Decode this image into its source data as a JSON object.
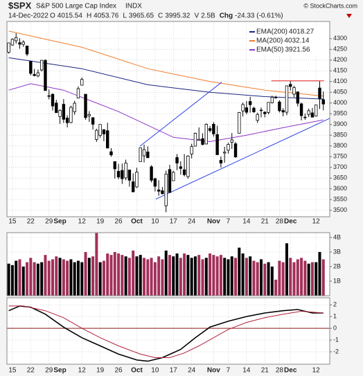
{
  "header": {
    "symbol": "$SPX",
    "name": "S&P 500 Large Cap Index",
    "exchange": "INDX",
    "credit": "© StockCharts.com",
    "date": "14-Dec-2022",
    "quote": [
      {
        "label": "O",
        "value": "4015.54"
      },
      {
        "label": "H",
        "value": "4053.76"
      },
      {
        "label": "L",
        "value": "3965.65"
      },
      {
        "label": "C",
        "value": "3995.32"
      },
      {
        "label": "V",
        "value": "2.5B"
      },
      {
        "label": "Chg",
        "value": "-24.33 (-0.61%)"
      }
    ]
  },
  "chart_data": [
    {
      "type": "candlestick",
      "xlim": [
        -0.5,
        87.75
      ],
      "ylim": [
        3470,
        4380
      ],
      "yticks": [
        3500,
        3550,
        3600,
        3650,
        3700,
        3750,
        3800,
        3850,
        3900,
        3950,
        4000,
        4050,
        4100,
        4150,
        4200,
        4250,
        4300
      ],
      "xticks": [
        {
          "value": 1,
          "label": "15"
        },
        {
          "value": 6,
          "label": "22"
        },
        {
          "value": 11,
          "label": "29"
        },
        {
          "value": 14,
          "label": "Sep"
        },
        {
          "value": 20,
          "label": "12"
        },
        {
          "value": 25,
          "label": "19"
        },
        {
          "value": 30,
          "label": "26"
        },
        {
          "value": 35,
          "label": "Oct"
        },
        {
          "value": 40,
          "label": "10"
        },
        {
          "value": 45,
          "label": "17"
        },
        {
          "value": 50,
          "label": "24"
        },
        {
          "value": 56,
          "label": "Nov"
        },
        {
          "value": 60,
          "label": "7"
        },
        {
          "value": 65,
          "label": "14"
        },
        {
          "value": 70,
          "label": "21"
        },
        {
          "value": 74,
          "label": "28"
        },
        {
          "value": 77,
          "label": "Dec"
        },
        {
          "value": 84,
          "label": "12"
        }
      ],
      "up_color": "#ffffff",
      "down_color": "#000000",
      "grid": true,
      "legend": "top-right",
      "ohlc": [
        [
          4236,
          4280,
          4230,
          4280
        ],
        [
          4270,
          4301,
          4267,
          4297
        ],
        [
          4290,
          4325,
          4277,
          4305
        ],
        [
          4281,
          4302,
          4253,
          4274
        ],
        [
          4273,
          4292,
          4262,
          4284
        ],
        [
          4266,
          4266,
          4218,
          4228
        ],
        [
          4195,
          4196,
          4129,
          4138
        ],
        [
          4133,
          4159,
          4124,
          4128
        ],
        [
          4126,
          4156,
          4120,
          4141
        ],
        [
          4154,
          4200,
          4147,
          4199
        ],
        [
          4199,
          4203,
          4057,
          4058
        ],
        [
          4034,
          4063,
          4017,
          4031
        ],
        [
          4041,
          4044,
          3965,
          3986
        ],
        [
          4000,
          4015,
          3954,
          3955
        ],
        [
          3937,
          3970,
          3903,
          3966
        ],
        [
          3994,
          4018,
          3907,
          3924
        ],
        [
          3930,
          3943,
          3886,
          3908
        ],
        [
          3909,
          3987,
          3906,
          3980
        ],
        [
          3959,
          4010,
          3945,
          3999
        ],
        [
          4023,
          4077,
          4023,
          4067
        ],
        [
          4083,
          4119,
          4083,
          4110
        ],
        [
          4041,
          4041,
          3922,
          3932
        ],
        [
          3940,
          3962,
          3912,
          3946
        ],
        [
          3932,
          3932,
          3876,
          3901
        ],
        [
          3830,
          3880,
          3819,
          3873
        ],
        [
          3849,
          3900,
          3838,
          3900
        ],
        [
          3876,
          3876,
          3822,
          3856
        ],
        [
          3871,
          3908,
          3789,
          3790
        ],
        [
          3773,
          3790,
          3750,
          3758
        ],
        [
          3727,
          3727,
          3648,
          3693
        ],
        [
          3682,
          3716,
          3645,
          3655
        ],
        [
          3686,
          3718,
          3623,
          3647
        ],
        [
          3651,
          3736,
          3640,
          3720
        ],
        [
          3688,
          3688,
          3610,
          3640
        ],
        [
          3633,
          3672,
          3584,
          3586
        ],
        [
          3609,
          3698,
          3604,
          3678
        ],
        [
          3727,
          3792,
          3727,
          3791
        ],
        [
          3754,
          3806,
          3723,
          3783
        ],
        [
          3772,
          3798,
          3744,
          3745
        ],
        [
          3703,
          3710,
          3630,
          3640
        ],
        [
          3647,
          3652,
          3588,
          3612
        ],
        [
          3595,
          3640,
          3568,
          3589
        ],
        [
          3591,
          3608,
          3574,
          3577
        ],
        [
          3521,
          3685,
          3491,
          3669
        ],
        [
          3690,
          3712,
          3582,
          3583
        ],
        [
          3638,
          3684,
          3638,
          3677
        ],
        [
          3746,
          3762,
          3687,
          3720
        ],
        [
          3703,
          3728,
          3666,
          3695
        ],
        [
          3689,
          3762,
          3658,
          3666
        ],
        [
          3657,
          3757,
          3647,
          3753
        ],
        [
          3762,
          3810,
          3742,
          3797
        ],
        [
          3799,
          3862,
          3799,
          3859
        ],
        [
          3826,
          3886,
          3825,
          3831
        ],
        [
          3834,
          3859,
          3803,
          3807
        ],
        [
          3809,
          3905,
          3808,
          3901
        ],
        [
          3881,
          3893,
          3863,
          3872
        ],
        [
          3901,
          3911,
          3843,
          3856
        ],
        [
          3853,
          3894,
          3758,
          3759
        ],
        [
          3733,
          3751,
          3699,
          3720
        ],
        [
          3767,
          3796,
          3722,
          3771
        ],
        [
          3780,
          3814,
          3764,
          3807
        ],
        [
          3817,
          3860,
          3786,
          3828
        ],
        [
          3810,
          3818,
          3744,
          3749
        ],
        [
          3859,
          3958,
          3859,
          3956
        ],
        [
          3963,
          4002,
          3937,
          3993
        ],
        [
          3978,
          4009,
          3947,
          3957
        ],
        [
          4007,
          4029,
          3955,
          3992
        ],
        [
          3976,
          3983,
          3954,
          3959
        ],
        [
          3919,
          3955,
          3907,
          3947
        ],
        [
          3967,
          3979,
          3933,
          3965
        ],
        [
          3957,
          3962,
          3933,
          3950
        ],
        [
          3956,
          4003,
          3947,
          4003
        ],
        [
          4001,
          4034,
          3998,
          4027
        ],
        [
          4024,
          4034,
          4021,
          4026
        ],
        [
          4005,
          4013,
          3956,
          3964
        ],
        [
          3965,
          3976,
          3938,
          3958
        ],
        [
          3957,
          4080,
          3943,
          4080
        ],
        [
          4087,
          4101,
          4058,
          4077
        ],
        [
          4041,
          4080,
          4027,
          4072
        ],
        [
          4052,
          4053,
          3984,
          3999
        ],
        [
          3996,
          4002,
          3919,
          3941
        ],
        [
          3934,
          3951,
          3922,
          3933
        ],
        [
          3947,
          3974,
          3935,
          3964
        ],
        [
          3954,
          3977,
          3934,
          3934
        ],
        [
          3939,
          3991,
          3937,
          3991
        ],
        [
          4070,
          4101,
          3972,
          4020
        ],
        [
          4015.54,
          4053.76,
          3965.65,
          3995.32
        ]
      ],
      "series": [
        {
          "name": "EMA(200)",
          "legend_value": "4018.27",
          "color": "#1a237e",
          "x": [
            0,
            20,
            38,
            55,
            70,
            86
          ],
          "values": [
            4211,
            4160,
            4085,
            4050,
            4030,
            4018.27
          ]
        },
        {
          "name": "MA(200)",
          "legend_value": "4032.14",
          "color": "#f07c2a",
          "x": [
            0,
            20,
            38,
            55,
            70,
            86
          ],
          "values": [
            4335,
            4260,
            4160,
            4100,
            4060,
            4032.14
          ]
        },
        {
          "name": "EMA(50)",
          "legend_value": "3921.56",
          "color": "#8e35c9",
          "x": [
            0,
            6,
            15,
            30,
            45,
            55,
            65,
            75,
            86
          ],
          "values": [
            4060,
            4090,
            4060,
            3960,
            3840,
            3820,
            3850,
            3885,
            3921.56
          ]
        }
      ],
      "trendlines": [
        {
          "color": "#2a3fe0",
          "x": [
            35.8,
            58.2
          ],
          "values": [
            3798,
            4097
          ]
        },
        {
          "color": "#2a3fe0",
          "x": [
            40.2,
            87.7
          ],
          "values": [
            3552,
            3928
          ]
        },
        {
          "color": "#e02020",
          "x": [
            71.8,
            86.2
          ],
          "values": [
            4103,
            4103
          ]
        }
      ]
    },
    {
      "type": "bar",
      "xlim": [
        -0.5,
        87.75
      ],
      "ylim": [
        0,
        4.33
      ],
      "yticks": [
        {
          "value": 1,
          "label": "1B"
        },
        {
          "value": 2,
          "label": "2B"
        },
        {
          "value": 3,
          "label": "3B"
        },
        {
          "value": 4,
          "label": "4B"
        }
      ],
      "up_color": "#000000",
      "down_color": "#a3305a",
      "grid": true,
      "values": [
        2.2,
        2.1,
        2.4,
        2.5,
        2.0,
        2.3,
        2.6,
        2.3,
        2.2,
        2.3,
        2.8,
        2.4,
        2.5,
        2.7,
        2.6,
        2.5,
        2.4,
        2.5,
        2.3,
        2.4,
        2.3,
        3.0,
        2.6,
        2.7,
        4.3,
        2.3,
        2.4,
        2.9,
        2.8,
        3.0,
        2.9,
        2.8,
        2.7,
        2.6,
        3.1,
        2.7,
        2.8,
        2.6,
        2.5,
        2.6,
        2.3,
        2.7,
        2.5,
        3.1,
        2.8,
        2.7,
        2.9,
        2.6,
        2.9,
        2.8,
        2.6,
        2.7,
        2.8,
        2.5,
        2.6,
        2.9,
        2.8,
        2.7,
        2.8,
        2.6,
        2.5,
        2.7,
        2.6,
        3.3,
        2.9,
        2.6,
        2.7,
        2.4,
        2.3,
        2.5,
        2.2,
        2.3,
        2.0,
        1.1,
        2.4,
        2.3,
        3.6,
        2.6,
        2.3,
        2.5,
        2.6,
        2.4,
        2.2,
        2.3,
        2.3,
        3.0,
        2.5
      ]
    },
    {
      "type": "line",
      "xlim": [
        -0.5,
        87.75
      ],
      "ylim": [
        -3.06,
        2.6
      ],
      "yticks": [
        -2,
        -1,
        0,
        1,
        2
      ],
      "grid": true,
      "xticks": [
        {
          "value": 1,
          "label": "15"
        },
        {
          "value": 6,
          "label": "22"
        },
        {
          "value": 11,
          "label": "29"
        },
        {
          "value": 14,
          "label": "Sep"
        },
        {
          "value": 20,
          "label": "12"
        },
        {
          "value": 25,
          "label": "19"
        },
        {
          "value": 30,
          "label": "26"
        },
        {
          "value": 35,
          "label": "Oct"
        },
        {
          "value": 40,
          "label": "10"
        },
        {
          "value": 45,
          "label": "17"
        },
        {
          "value": 50,
          "label": "24"
        },
        {
          "value": 56,
          "label": "Nov"
        },
        {
          "value": 60,
          "label": "7"
        },
        {
          "value": 65,
          "label": "14"
        },
        {
          "value": 70,
          "label": "21"
        },
        {
          "value": 74,
          "label": "28"
        },
        {
          "value": 77,
          "label": "Dec"
        },
        {
          "value": 84,
          "label": "12"
        }
      ],
      "series": [
        {
          "color": "#000000",
          "x": [
            0,
            3,
            6,
            10,
            15,
            20,
            25,
            30,
            35,
            38,
            42,
            47,
            51,
            55,
            60,
            65,
            70,
            75,
            79,
            83,
            86
          ],
          "values": [
            1.5,
            1.9,
            1.8,
            1.2,
            0.1,
            -0.8,
            -1.5,
            -2.2,
            -2.7,
            -2.8,
            -2.5,
            -1.8,
            -0.8,
            0.1,
            0.6,
            1.0,
            1.3,
            1.5,
            1.6,
            1.3,
            1.3
          ]
        },
        {
          "color": "#b0203a",
          "x": [
            0,
            4,
            10,
            15,
            20,
            25,
            30,
            36,
            40,
            44,
            48,
            52,
            56,
            60,
            65,
            70,
            75,
            80,
            86
          ],
          "values": [
            1.9,
            1.9,
            1.5,
            0.9,
            0,
            -0.8,
            -1.5,
            -2.2,
            -2.5,
            -2.5,
            -2.1,
            -1.5,
            -0.8,
            -0.1,
            0.5,
            0.9,
            1.2,
            1.45,
            1.3
          ]
        }
      ]
    }
  ]
}
